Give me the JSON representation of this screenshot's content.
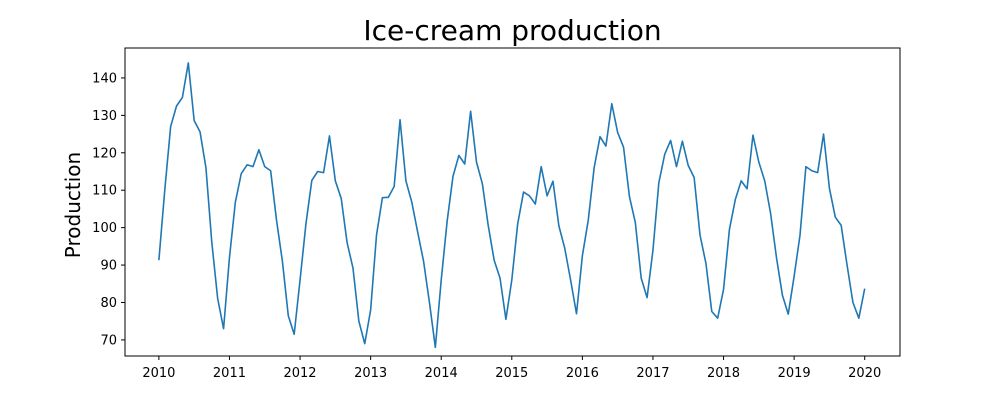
{
  "chart_data": {
    "type": "line",
    "title": "Ice-cream production",
    "xlabel": "",
    "ylabel": "Production",
    "x_ticks": [
      "2010",
      "2011",
      "2012",
      "2013",
      "2014",
      "2015",
      "2016",
      "2017",
      "2018",
      "2019",
      "2020"
    ],
    "y_ticks": [
      "70",
      "80",
      "90",
      "100",
      "110",
      "120",
      "130",
      "140"
    ],
    "xlim": [
      2009.52,
      2020.5
    ],
    "ylim": [
      65.7,
      148.0
    ],
    "grid": false,
    "legend": "none",
    "series": [
      {
        "color": "#1f77b4",
        "x": [
          "2010-01",
          "2010-02",
          "2010-03",
          "2010-04",
          "2010-05",
          "2010-06",
          "2010-07",
          "2010-08",
          "2010-09",
          "2010-10",
          "2010-11",
          "2010-12",
          "2011-01",
          "2011-02",
          "2011-03",
          "2011-04",
          "2011-05",
          "2011-06",
          "2011-07",
          "2011-08",
          "2011-09",
          "2011-10",
          "2011-11",
          "2011-12",
          "2012-01",
          "2012-02",
          "2012-03",
          "2012-04",
          "2012-05",
          "2012-06",
          "2012-07",
          "2012-08",
          "2012-09",
          "2012-10",
          "2012-11",
          "2012-12",
          "2013-01",
          "2013-02",
          "2013-03",
          "2013-04",
          "2013-05",
          "2013-06",
          "2013-07",
          "2013-08",
          "2013-09",
          "2013-10",
          "2013-11",
          "2013-12",
          "2014-01",
          "2014-02",
          "2014-03",
          "2014-04",
          "2014-05",
          "2014-06",
          "2014-07",
          "2014-08",
          "2014-09",
          "2014-10",
          "2014-11",
          "2014-12",
          "2015-01",
          "2015-02",
          "2015-03",
          "2015-04",
          "2015-05",
          "2015-06",
          "2015-07",
          "2015-08",
          "2015-09",
          "2015-10",
          "2015-11",
          "2015-12",
          "2016-01",
          "2016-02",
          "2016-03",
          "2016-04",
          "2016-05",
          "2016-06",
          "2016-07",
          "2016-08",
          "2016-09",
          "2016-10",
          "2016-11",
          "2016-12",
          "2017-01",
          "2017-02",
          "2017-03",
          "2017-04",
          "2017-05",
          "2017-06",
          "2017-07",
          "2017-08",
          "2017-09",
          "2017-10",
          "2017-11",
          "2017-12",
          "2018-01",
          "2018-02",
          "2018-03",
          "2018-04",
          "2018-05",
          "2018-06",
          "2018-07",
          "2018-08",
          "2018-09",
          "2018-10",
          "2018-11",
          "2018-12",
          "2019-01",
          "2019-02",
          "2019-03",
          "2019-04",
          "2019-05",
          "2019-06",
          "2019-07",
          "2019-08",
          "2019-09",
          "2019-10",
          "2019-11",
          "2019-12",
          "2020-01"
        ],
        "values": [
          91.3,
          110.0,
          127.0,
          132.5,
          134.8,
          144.0,
          128.6,
          125.6,
          116.0,
          96.0,
          81.0,
          73.0,
          92.0,
          106.8,
          114.4,
          116.8,
          116.3,
          120.8,
          116.3,
          115.2,
          102.0,
          91.0,
          76.5,
          71.5,
          86.0,
          101.0,
          112.6,
          115.0,
          114.7,
          124.5,
          112.5,
          107.8,
          96.0,
          89.2,
          75.0,
          69.0,
          78.0,
          98.0,
          108.0,
          108.1,
          111.0,
          128.8,
          112.5,
          106.8,
          98.8,
          91.0,
          80.0,
          68.0,
          86.0,
          101.6,
          113.7,
          119.3,
          117.0,
          131.1,
          117.5,
          111.7,
          100.5,
          91.3,
          86.5,
          75.5,
          86.0,
          101.0,
          109.5,
          108.5,
          106.3,
          116.3,
          108.5,
          112.4,
          100.5,
          94.5,
          86.0,
          77.0,
          92.5,
          102.0,
          116.0,
          124.3,
          121.8,
          133.1,
          125.4,
          121.5,
          108.3,
          101.4,
          86.5,
          81.3,
          94.0,
          112.0,
          119.6,
          123.3,
          116.3,
          123.1,
          116.6,
          113.4,
          98.0,
          90.5,
          77.6,
          75.8,
          83.5,
          99.5,
          107.5,
          112.5,
          110.4,
          124.7,
          117.5,
          112.5,
          103.8,
          92.0,
          82.0,
          76.9,
          87.0,
          98.0,
          116.3,
          115.2,
          114.7,
          125.0,
          110.5,
          102.8,
          100.6,
          90.0,
          80.0,
          75.8,
          83.7
        ]
      }
    ]
  }
}
